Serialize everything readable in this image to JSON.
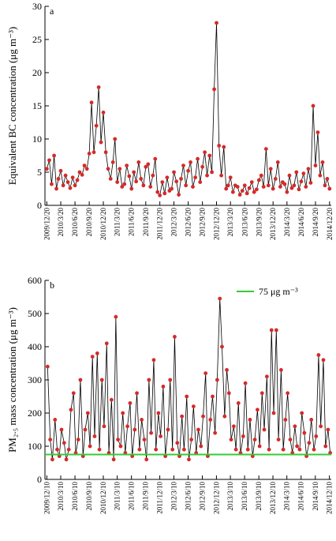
{
  "chart_data": [
    {
      "type": "line",
      "label": "a",
      "ylabel": "Equivalent BC concentration (μg m⁻³)",
      "color": "#d42a2a",
      "line_color": "#000000",
      "xlim": [
        "2009/12/8",
        "2014/12/31"
      ],
      "ylim": [
        0,
        30
      ],
      "yticks": [
        0,
        5,
        10,
        15,
        20,
        25,
        30
      ],
      "xticks": [
        "2009/12/20",
        "2010/3/20",
        "2010/6/20",
        "2010/9/20",
        "2010/12/20",
        "2011/3/20",
        "2011/6/20",
        "2011/9/20",
        "2011/12/20",
        "2012/3/20",
        "2012/6/20",
        "2012/9/20",
        "2012/12/20",
        "2013/3/20",
        "2013/6/20",
        "2013/9/20",
        "2013/12/20",
        "2014/3/20",
        "2014/6/20",
        "2014/9/20",
        "2014/12/20"
      ],
      "x": [
        "2009/12/20",
        "2010/1/5",
        "2010/1/20",
        "2010/2/5",
        "2010/2/20",
        "2010/3/5",
        "2010/3/20",
        "2010/4/5",
        "2010/4/20",
        "2010/5/5",
        "2010/5/20",
        "2010/6/5",
        "2010/6/20",
        "2010/7/5",
        "2010/7/20",
        "2010/8/5",
        "2010/8/20",
        "2010/9/5",
        "2010/9/20",
        "2010/10/5",
        "2010/10/20",
        "2010/11/5",
        "2010/11/20",
        "2010/12/5",
        "2010/12/20",
        "2011/1/5",
        "2011/1/20",
        "2011/2/5",
        "2011/2/20",
        "2011/3/5",
        "2011/3/20",
        "2011/4/5",
        "2011/4/20",
        "2011/5/5",
        "2011/5/20",
        "2011/6/5",
        "2011/6/20",
        "2011/7/5",
        "2011/7/20",
        "2011/8/5",
        "2011/8/20",
        "2011/9/5",
        "2011/9/20",
        "2011/10/5",
        "2011/10/20",
        "2011/11/5",
        "2011/11/20",
        "2011/12/5",
        "2011/12/20",
        "2012/1/5",
        "2012/1/20",
        "2012/2/5",
        "2012/2/20",
        "2012/3/5",
        "2012/3/20",
        "2012/4/5",
        "2012/4/20",
        "2012/5/5",
        "2012/5/20",
        "2012/6/5",
        "2012/6/20",
        "2012/7/5",
        "2012/7/20",
        "2012/8/5",
        "2012/8/20",
        "2012/9/5",
        "2012/9/20",
        "2012/10/5",
        "2012/10/20",
        "2012/11/5",
        "2012/11/20",
        "2012/12/5",
        "2012/12/20",
        "2013/1/5",
        "2013/1/20",
        "2013/2/5",
        "2013/2/20",
        "2013/3/5",
        "2013/3/20",
        "2013/4/5",
        "2013/4/20",
        "2013/5/5",
        "2013/5/20",
        "2013/6/5",
        "2013/6/20",
        "2013/7/5",
        "2013/7/20",
        "2013/8/5",
        "2013/8/20",
        "2013/9/5",
        "2013/9/20",
        "2013/10/5",
        "2013/10/20",
        "2013/11/5",
        "2013/11/20",
        "2013/12/5",
        "2013/12/20",
        "2014/1/5",
        "2014/1/20",
        "2014/2/5",
        "2014/2/20",
        "2014/3/5",
        "2014/3/20",
        "2014/4/5",
        "2014/4/20",
        "2014/5/5",
        "2014/5/20",
        "2014/6/5",
        "2014/6/20",
        "2014/7/5",
        "2014/7/20",
        "2014/8/5",
        "2014/8/20",
        "2014/9/5",
        "2014/9/20",
        "2014/10/5",
        "2014/10/20",
        "2014/11/5",
        "2014/11/20",
        "2014/12/5",
        "2014/12/20"
      ],
      "values": [
        5.5,
        6.8,
        3.2,
        7.5,
        2.5,
        4.0,
        5.2,
        3.0,
        4.5,
        3.5,
        2.6,
        4.2,
        3.0,
        3.8,
        5.0,
        4.6,
        6.0,
        5.5,
        7.8,
        15.5,
        8.0,
        12.0,
        17.8,
        9.5,
        14.0,
        8.0,
        5.5,
        4.0,
        6.5,
        10.0,
        3.5,
        5.5,
        2.8,
        3.2,
        6.0,
        4.4,
        2.5,
        5.0,
        3.6,
        6.5,
        4.0,
        3.0,
        5.8,
        6.2,
        2.8,
        4.5,
        7.0,
        2.0,
        1.5,
        3.5,
        1.8,
        4.2,
        2.2,
        2.5,
        5.0,
        3.6,
        1.6,
        4.0,
        6.0,
        3.0,
        5.2,
        6.5,
        2.8,
        4.2,
        7.0,
        3.5,
        5.8,
        8.0,
        4.5,
        7.5,
        5.0,
        17.5,
        27.5,
        9.0,
        4.5,
        8.8,
        2.5,
        3.0,
        4.2,
        2.0,
        3.0,
        2.8,
        1.6,
        2.2,
        3.0,
        1.8,
        2.6,
        3.5,
        2.0,
        2.4,
        3.8,
        4.5,
        2.8,
        8.5,
        3.0,
        5.5,
        2.5,
        4.0,
        6.5,
        2.8,
        3.5,
        3.2,
        2.0,
        4.5,
        2.6,
        3.0,
        5.0,
        2.4,
        3.6,
        4.8,
        2.8,
        5.5,
        3.4,
        15.0,
        6.0,
        11.0,
        4.5,
        6.5,
        3.0,
        4.0,
        2.5
      ]
    },
    {
      "type": "line",
      "label": "b",
      "ylabel": "PM₂.₅ mass concentration (μg m⁻³)",
      "color": "#d42a2a",
      "line_color": "#000000",
      "reference_line": {
        "value": 75,
        "label": "75 μg m⁻³",
        "color": "#33cc33"
      },
      "xlim": [
        "2009/11/28",
        "2014/12/22"
      ],
      "ylim": [
        0,
        600
      ],
      "yticks": [
        0,
        100,
        200,
        300,
        400,
        500,
        600
      ],
      "xticks": [
        "2009/12/10",
        "2010/3/10",
        "2010/6/10",
        "2010/9/10",
        "2010/12/10",
        "2011/3/10",
        "2011/6/10",
        "2011/9/10",
        "2011/12/10",
        "2012/3/10",
        "2012/6/10",
        "2012/9/10",
        "2012/12/10",
        "2013/3/10",
        "2013/6/10",
        "2013/9/10",
        "2013/12/10",
        "2014/3/10",
        "2014/6/10",
        "2014/9/10",
        "2014/12/10"
      ],
      "x": [
        "2009/12/15",
        "2010/1/1",
        "2010/1/15",
        "2010/2/1",
        "2010/2/15",
        "2010/3/1",
        "2010/3/15",
        "2010/4/1",
        "2010/4/15",
        "2010/5/1",
        "2010/5/15",
        "2010/6/1",
        "2010/6/15",
        "2010/7/1",
        "2010/7/15",
        "2010/8/1",
        "2010/8/15",
        "2010/9/1",
        "2010/9/15",
        "2010/10/1",
        "2010/10/15",
        "2010/11/1",
        "2010/11/15",
        "2010/12/1",
        "2010/12/15",
        "2011/1/1",
        "2011/1/15",
        "2011/2/1",
        "2011/2/15",
        "2011/3/1",
        "2011/3/15",
        "2011/4/1",
        "2011/4/15",
        "2011/5/1",
        "2011/5/15",
        "2011/6/1",
        "2011/6/15",
        "2011/7/1",
        "2011/7/15",
        "2011/8/1",
        "2011/8/15",
        "2011/9/1",
        "2011/9/15",
        "2011/10/1",
        "2011/10/15",
        "2011/11/1",
        "2011/11/15",
        "2011/12/1",
        "2011/12/15",
        "2012/1/1",
        "2012/1/15",
        "2012/2/1",
        "2012/2/15",
        "2012/3/1",
        "2012/3/15",
        "2012/4/1",
        "2012/4/15",
        "2012/5/1",
        "2012/5/15",
        "2012/6/1",
        "2012/6/15",
        "2012/7/1",
        "2012/7/15",
        "2012/8/1",
        "2012/8/15",
        "2012/9/1",
        "2012/9/15",
        "2012/10/1",
        "2012/10/15",
        "2012/11/1",
        "2012/11/15",
        "2012/12/1",
        "2012/12/15",
        "2013/1/1",
        "2013/1/15",
        "2013/2/1",
        "2013/2/15",
        "2013/3/1",
        "2013/3/15",
        "2013/4/1",
        "2013/4/15",
        "2013/5/1",
        "2013/5/15",
        "2013/6/1",
        "2013/6/15",
        "2013/7/1",
        "2013/7/15",
        "2013/8/1",
        "2013/8/15",
        "2013/9/1",
        "2013/9/15",
        "2013/10/1",
        "2013/10/15",
        "2013/11/1",
        "2013/11/15",
        "2013/12/1",
        "2013/12/15",
        "2014/1/1",
        "2014/1/15",
        "2014/2/1",
        "2014/2/15",
        "2014/3/1",
        "2014/3/15",
        "2014/4/1",
        "2014/4/15",
        "2014/5/1",
        "2014/5/15",
        "2014/6/1",
        "2014/6/15",
        "2014/7/1",
        "2014/7/15",
        "2014/8/1",
        "2014/8/15",
        "2014/9/1",
        "2014/9/15",
        "2014/10/1",
        "2014/10/15",
        "2014/11/1",
        "2014/11/15",
        "2014/12/1",
        "2014/12/15"
      ],
      "values": [
        340,
        120,
        60,
        180,
        90,
        70,
        150,
        110,
        60,
        90,
        210,
        260,
        80,
        120,
        300,
        70,
        150,
        200,
        100,
        370,
        130,
        380,
        90,
        300,
        160,
        410,
        80,
        240,
        60,
        490,
        120,
        100,
        200,
        80,
        160,
        230,
        70,
        150,
        260,
        90,
        180,
        120,
        60,
        300,
        140,
        360,
        90,
        200,
        130,
        280,
        70,
        150,
        300,
        90,
        430,
        110,
        70,
        190,
        90,
        250,
        60,
        120,
        220,
        80,
        150,
        100,
        190,
        320,
        70,
        180,
        250,
        140,
        300,
        545,
        400,
        190,
        330,
        260,
        120,
        160,
        90,
        230,
        80,
        130,
        290,
        90,
        180,
        70,
        120,
        210,
        100,
        260,
        150,
        310,
        90,
        450,
        200,
        450,
        120,
        330,
        90,
        180,
        260,
        120,
        80,
        160,
        100,
        90,
        200,
        140,
        70,
        110,
        180,
        90,
        130,
        375,
        160,
        360,
        100,
        150,
        80
      ]
    }
  ]
}
